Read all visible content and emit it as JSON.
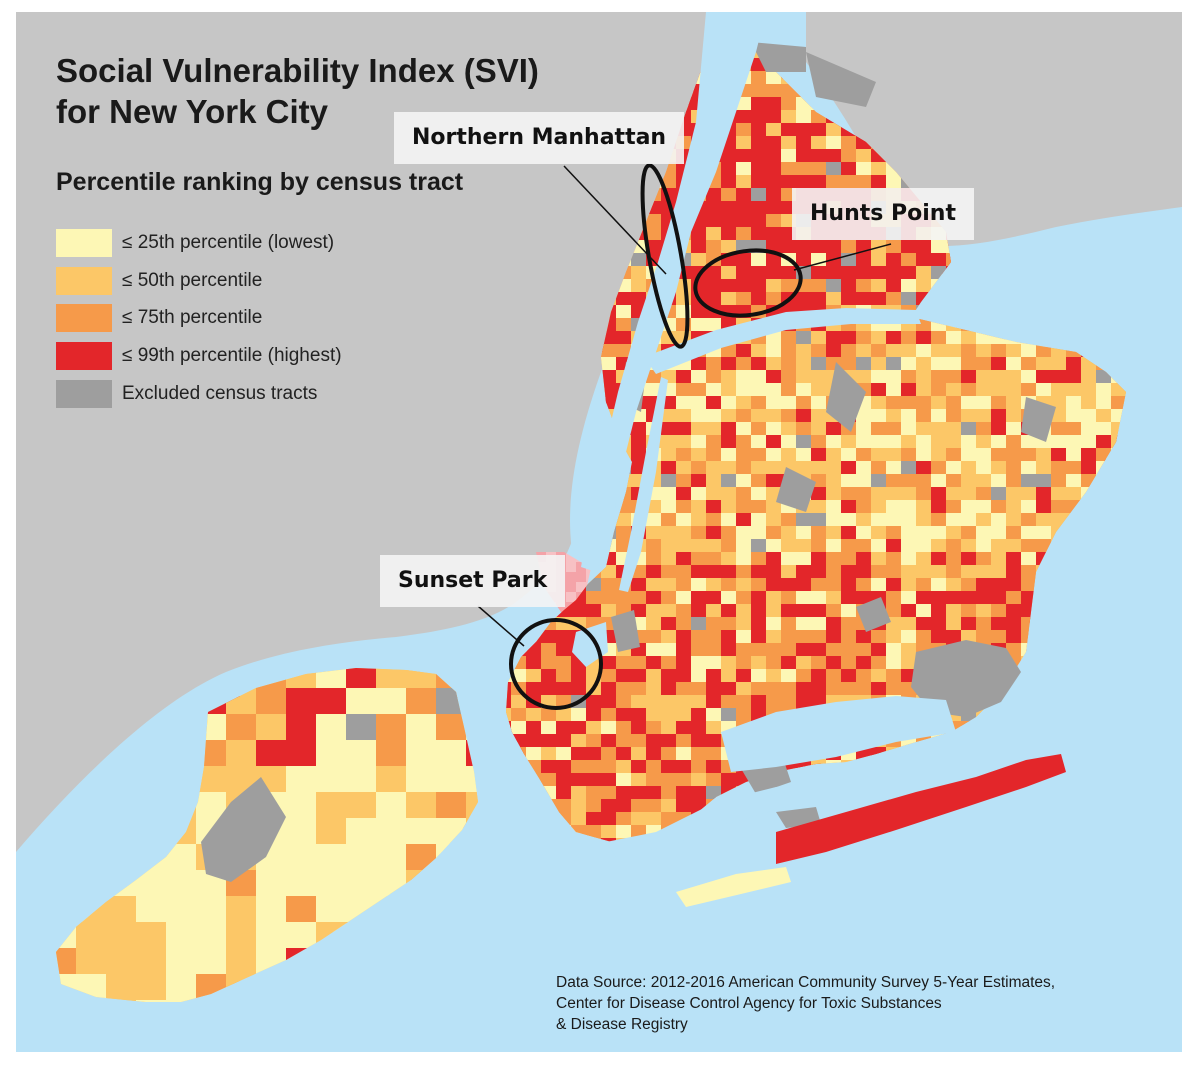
{
  "map": {
    "title_lines": [
      "Social Vulnerability Index (SVI)",
      "for New York City"
    ],
    "legend": {
      "heading": "Percentile ranking by census tract",
      "items": [
        {
          "label": "≤ 25th percentile (lowest)",
          "color": "#fdf7b5"
        },
        {
          "label": "≤ 50th percentile",
          "color": "#fcc767"
        },
        {
          "label": "≤ 75th percentile",
          "color": "#f69a4a"
        },
        {
          "label": "≤ 99th percentile (highest)",
          "color": "#e3262a"
        },
        {
          "label": "Excluded census tracts",
          "color": "#9e9e9e"
        }
      ]
    },
    "callouts": [
      {
        "label": "Northern Manhattan"
      },
      {
        "label": "Hunts Point"
      },
      {
        "label": "Sunset Park"
      }
    ],
    "source_lines": [
      "Data Source: 2012-2016 American Community Survey 5-Year Estimates,",
      "Center for Disease Control Agency for Toxic Substances",
      "& Disease Registry"
    ],
    "colors": {
      "land": "#c6c6c6",
      "water": "#b9e2f7"
    }
  }
}
